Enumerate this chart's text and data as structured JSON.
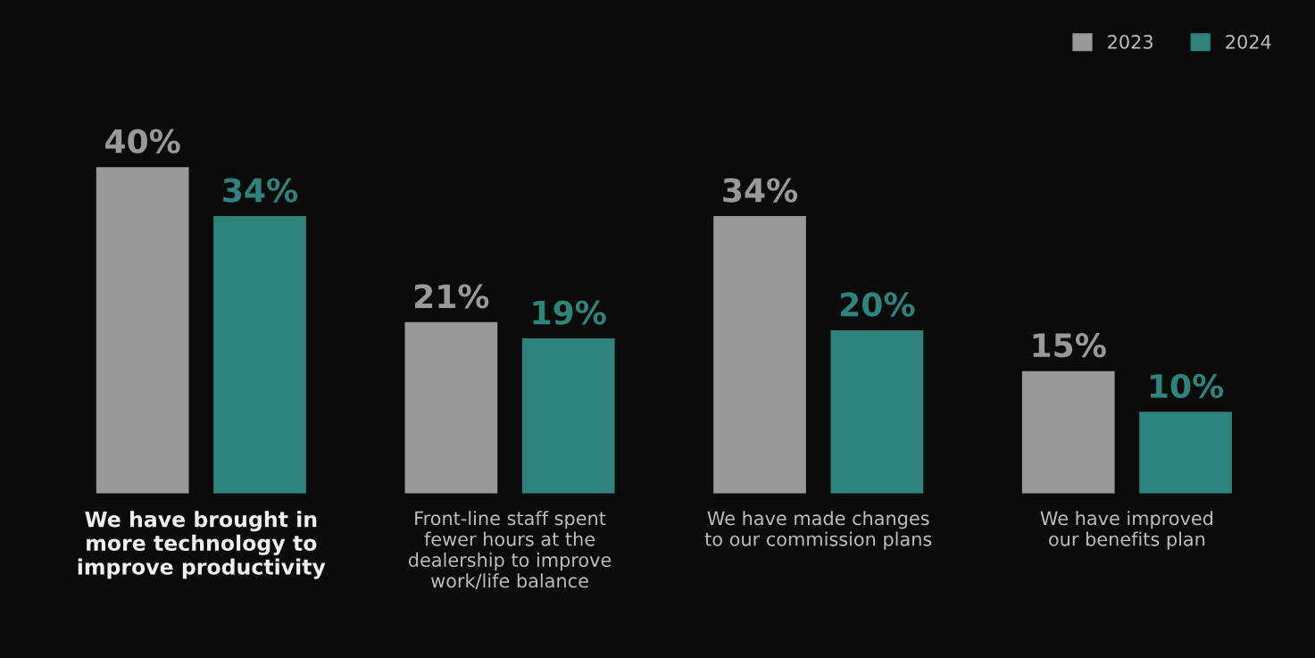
{
  "chart_data": {
    "type": "bar",
    "categories": [
      "We have brought in\nmore technology to\nimprove productivity",
      "Front-line staff spent\nfewer hours at the\ndealership to improve\nwork/life balance",
      "We have made changes\nto our commission plans",
      "We have improved\nour benefits plan"
    ],
    "series": [
      {
        "name": "2023",
        "color": "#999999",
        "values": [
          40,
          21,
          34,
          15
        ],
        "value_labels": [
          "40%",
          "21%",
          "34%",
          "15%"
        ]
      },
      {
        "name": "2024",
        "color": "#2e837a",
        "values": [
          34,
          19,
          20,
          10
        ],
        "value_labels": [
          "34%",
          "19%",
          "20%",
          "10%"
        ]
      }
    ],
    "legend": "top right",
    "grid": false
  }
}
